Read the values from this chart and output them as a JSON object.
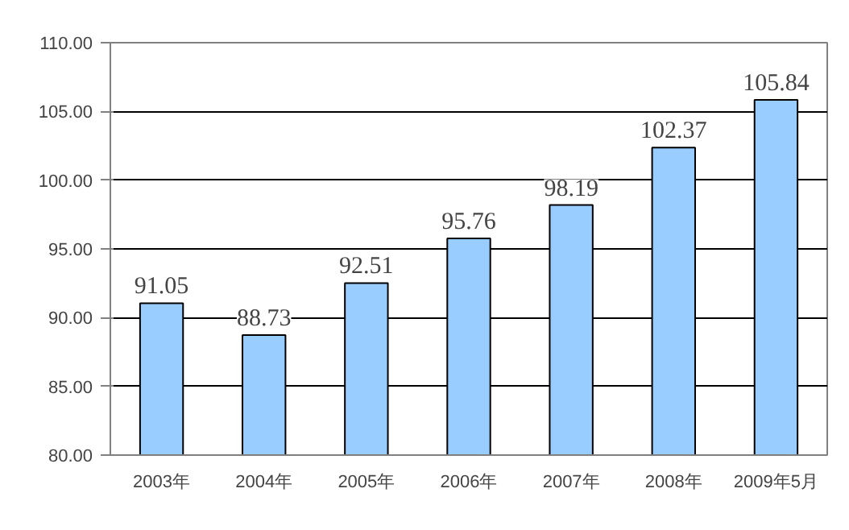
{
  "chart_data": {
    "type": "bar",
    "categories": [
      "2003年",
      "2004年",
      "2005年",
      "2006年",
      "2007年",
      "2008年",
      "2009年5月"
    ],
    "values": [
      91.05,
      88.73,
      92.51,
      95.76,
      98.19,
      102.37,
      105.84
    ],
    "color": "#99ccff",
    "ylim": [
      80,
      110
    ],
    "yticks": [
      {
        "value": 80,
        "label": "80.00"
      },
      {
        "value": 85,
        "label": "85.00"
      },
      {
        "value": 90,
        "label": "90.00"
      },
      {
        "value": 95,
        "label": "95.00"
      },
      {
        "value": 100,
        "label": "100.00"
      },
      {
        "value": 105,
        "label": "105.00"
      },
      {
        "value": 110,
        "label": "110.00"
      }
    ],
    "grid": "y",
    "data_labels": true
  }
}
